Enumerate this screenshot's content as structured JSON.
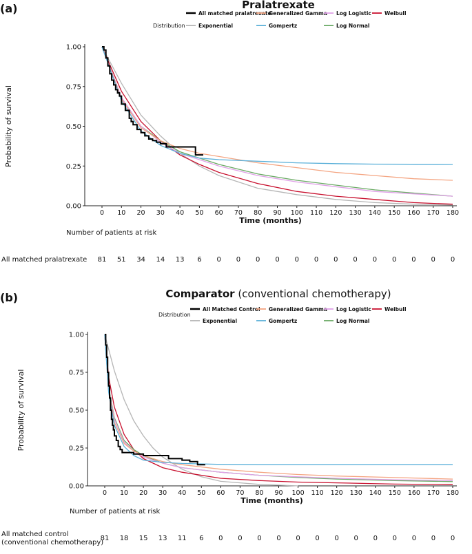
{
  "chart_data": [
    {
      "type": "line",
      "panel_label": "(a)",
      "title": "Pralatrexate",
      "title_suffix": "",
      "legend_title": "Distribution",
      "legend": [
        {
          "name": "All matched pralatrexate",
          "color": "#000000",
          "thick": true
        },
        {
          "name": "Generalized Gamma",
          "color": "#f4a582",
          "thick": false
        },
        {
          "name": "Log Logistic",
          "color": "#e0a0e8",
          "thick": false
        },
        {
          "name": "Weibull",
          "color": "#c8102e",
          "thick": false
        },
        {
          "name": "Exponential",
          "color": "#b5b5b5",
          "thick": false
        },
        {
          "name": "Gompertz",
          "color": "#5bb0d9",
          "thick": false
        },
        {
          "name": "Log Normal",
          "color": "#6aaa64",
          "thick": false
        }
      ],
      "xlabel": "Time (months)",
      "ylabel": "Probability of survival",
      "xlim": [
        0,
        180
      ],
      "ylim": [
        0,
        1
      ],
      "x_ticks": [
        0,
        10,
        20,
        30,
        40,
        50,
        60,
        70,
        80,
        90,
        100,
        110,
        120,
        130,
        140,
        150,
        160,
        170,
        180
      ],
      "y_ticks": [
        "0.00",
        "0.25",
        "0.50",
        "0.75",
        "1.00"
      ],
      "km": {
        "name": "All matched pralatrexate",
        "x": [
          0,
          1,
          2,
          3,
          4,
          5,
          6,
          7,
          8,
          9,
          10,
          12,
          14,
          15,
          16,
          18,
          20,
          22,
          24,
          26,
          28,
          30,
          33,
          38,
          44,
          47,
          48,
          52
        ],
        "y": [
          1.0,
          0.98,
          0.93,
          0.88,
          0.83,
          0.79,
          0.76,
          0.73,
          0.71,
          0.69,
          0.64,
          0.6,
          0.55,
          0.53,
          0.51,
          0.48,
          0.46,
          0.44,
          0.42,
          0.41,
          0.4,
          0.39,
          0.37,
          0.37,
          0.37,
          0.37,
          0.32,
          0.32
        ]
      },
      "models": [
        {
          "name": "Exponential",
          "x": [
            0,
            10,
            20,
            30,
            40,
            50,
            60,
            80,
            100,
            120,
            140,
            160,
            180
          ],
          "y": [
            1.0,
            0.77,
            0.57,
            0.44,
            0.33,
            0.25,
            0.19,
            0.11,
            0.07,
            0.04,
            0.02,
            0.01,
            0.005
          ]
        },
        {
          "name": "Weibull",
          "x": [
            0,
            10,
            20,
            30,
            40,
            50,
            60,
            80,
            100,
            120,
            140,
            160,
            180
          ],
          "y": [
            1.0,
            0.72,
            0.53,
            0.41,
            0.32,
            0.26,
            0.21,
            0.14,
            0.09,
            0.06,
            0.04,
            0.02,
            0.01
          ]
        },
        {
          "name": "Log Normal",
          "x": [
            0,
            10,
            20,
            30,
            40,
            50,
            60,
            80,
            100,
            120,
            140,
            160,
            180
          ],
          "y": [
            1.0,
            0.68,
            0.5,
            0.41,
            0.34,
            0.3,
            0.26,
            0.2,
            0.16,
            0.13,
            0.1,
            0.08,
            0.06
          ]
        },
        {
          "name": "Log Logistic",
          "x": [
            0,
            10,
            20,
            30,
            40,
            50,
            60,
            80,
            100,
            120,
            140,
            160,
            180
          ],
          "y": [
            1.0,
            0.68,
            0.5,
            0.4,
            0.33,
            0.29,
            0.25,
            0.19,
            0.15,
            0.12,
            0.09,
            0.075,
            0.06
          ]
        },
        {
          "name": "Generalized Gamma",
          "x": [
            0,
            10,
            20,
            30,
            40,
            50,
            60,
            80,
            100,
            120,
            140,
            160,
            180
          ],
          "y": [
            1.0,
            0.67,
            0.49,
            0.41,
            0.36,
            0.33,
            0.31,
            0.27,
            0.24,
            0.21,
            0.19,
            0.17,
            0.16
          ]
        },
        {
          "name": "Gompertz",
          "x": [
            0,
            10,
            20,
            30,
            40,
            50,
            60,
            80,
            100,
            120,
            140,
            160,
            180
          ],
          "y": [
            1.0,
            0.66,
            0.47,
            0.38,
            0.33,
            0.3,
            0.29,
            0.28,
            0.27,
            0.265,
            0.262,
            0.261,
            0.26
          ]
        }
      ],
      "risk_table": {
        "header": "Number of patients at risk",
        "row_label": [
          "All matched pralatrexate"
        ],
        "values": [
          81,
          51,
          34,
          14,
          13,
          6,
          0,
          0,
          0,
          0,
          0,
          0,
          0,
          0,
          0,
          0,
          0,
          0,
          0
        ]
      }
    },
    {
      "type": "line",
      "panel_label": "(b)",
      "title": "Comparator",
      "title_suffix": " (conventional chemotherapy)",
      "legend_title": "Distribution",
      "legend": [
        {
          "name": "All Matched Control",
          "color": "#000000",
          "thick": true
        },
        {
          "name": "Generalized Gamma",
          "color": "#f4a582",
          "thick": false
        },
        {
          "name": "Log Logistic",
          "color": "#e0a0e8",
          "thick": false
        },
        {
          "name": "Weibull",
          "color": "#c8102e",
          "thick": false
        },
        {
          "name": "Exponential",
          "color": "#b5b5b5",
          "thick": false
        },
        {
          "name": "Gompertz",
          "color": "#5bb0d9",
          "thick": false
        },
        {
          "name": "Log Normal",
          "color": "#6aaa64",
          "thick": false
        }
      ],
      "xlabel": "Time (months)",
      "ylabel": "Probability of survival",
      "xlim": [
        0,
        180
      ],
      "ylim": [
        0,
        1
      ],
      "x_ticks": [
        0,
        10,
        20,
        30,
        40,
        50,
        60,
        70,
        80,
        90,
        100,
        110,
        120,
        130,
        140,
        150,
        160,
        170,
        180
      ],
      "y_ticks": [
        "0.00",
        "0.25",
        "0.50",
        "0.75",
        "1.00"
      ],
      "km": {
        "name": "All Matched Control",
        "x": [
          0,
          0.5,
          1,
          1.5,
          2,
          2.5,
          3,
          3.5,
          4,
          4.5,
          5,
          6,
          7,
          8,
          9,
          12,
          15,
          20,
          25,
          30,
          33,
          40,
          44,
          48,
          52
        ],
        "y": [
          1.0,
          0.93,
          0.85,
          0.75,
          0.66,
          0.58,
          0.5,
          0.44,
          0.4,
          0.37,
          0.33,
          0.3,
          0.26,
          0.24,
          0.22,
          0.22,
          0.21,
          0.2,
          0.2,
          0.2,
          0.18,
          0.17,
          0.16,
          0.14,
          0.14
        ]
      },
      "models": [
        {
          "name": "Exponential",
          "x": [
            0,
            5,
            10,
            15,
            20,
            25,
            30,
            40,
            50,
            60,
            70,
            80,
            100
          ],
          "y": [
            1.0,
            0.76,
            0.57,
            0.43,
            0.33,
            0.25,
            0.19,
            0.11,
            0.06,
            0.03,
            0.02,
            0.01,
            0.0
          ]
        },
        {
          "name": "Weibull",
          "x": [
            0,
            2,
            5,
            10,
            15,
            20,
            30,
            40,
            60,
            80,
            100,
            120,
            150,
            180
          ],
          "y": [
            1.0,
            0.72,
            0.52,
            0.34,
            0.24,
            0.18,
            0.12,
            0.09,
            0.05,
            0.035,
            0.025,
            0.02,
            0.012,
            0.008
          ]
        },
        {
          "name": "Log Normal",
          "x": [
            0,
            2,
            5,
            10,
            15,
            20,
            30,
            40,
            60,
            80,
            100,
            120,
            150,
            180
          ],
          "y": [
            1.0,
            0.65,
            0.45,
            0.3,
            0.24,
            0.2,
            0.15,
            0.12,
            0.09,
            0.07,
            0.055,
            0.045,
            0.035,
            0.028
          ]
        },
        {
          "name": "Log Logistic",
          "x": [
            0,
            2,
            5,
            10,
            15,
            20,
            30,
            40,
            60,
            80,
            100,
            120,
            150,
            180
          ],
          "y": [
            1.0,
            0.64,
            0.44,
            0.29,
            0.23,
            0.19,
            0.15,
            0.12,
            0.09,
            0.07,
            0.06,
            0.05,
            0.04,
            0.035
          ]
        },
        {
          "name": "Generalized Gamma",
          "x": [
            0,
            2,
            5,
            10,
            15,
            20,
            30,
            40,
            60,
            80,
            100,
            120,
            150,
            180
          ],
          "y": [
            1.0,
            0.63,
            0.42,
            0.28,
            0.23,
            0.2,
            0.16,
            0.14,
            0.11,
            0.09,
            0.075,
            0.065,
            0.055,
            0.045
          ]
        },
        {
          "name": "Gompertz",
          "x": [
            0,
            2,
            5,
            10,
            15,
            20,
            30,
            40,
            60,
            80,
            100,
            120,
            150,
            180
          ],
          "y": [
            1.0,
            0.62,
            0.4,
            0.26,
            0.2,
            0.17,
            0.155,
            0.148,
            0.142,
            0.14,
            0.14,
            0.14,
            0.14,
            0.14
          ]
        }
      ],
      "risk_table": {
        "header": "Number of patients at risk",
        "row_label": [
          "All matched control",
          "(conventional chemotherapy)"
        ],
        "values": [
          81,
          18,
          15,
          13,
          11,
          6,
          0,
          0,
          0,
          0,
          0,
          0,
          0,
          0,
          0,
          0,
          0,
          0,
          0
        ]
      }
    }
  ]
}
